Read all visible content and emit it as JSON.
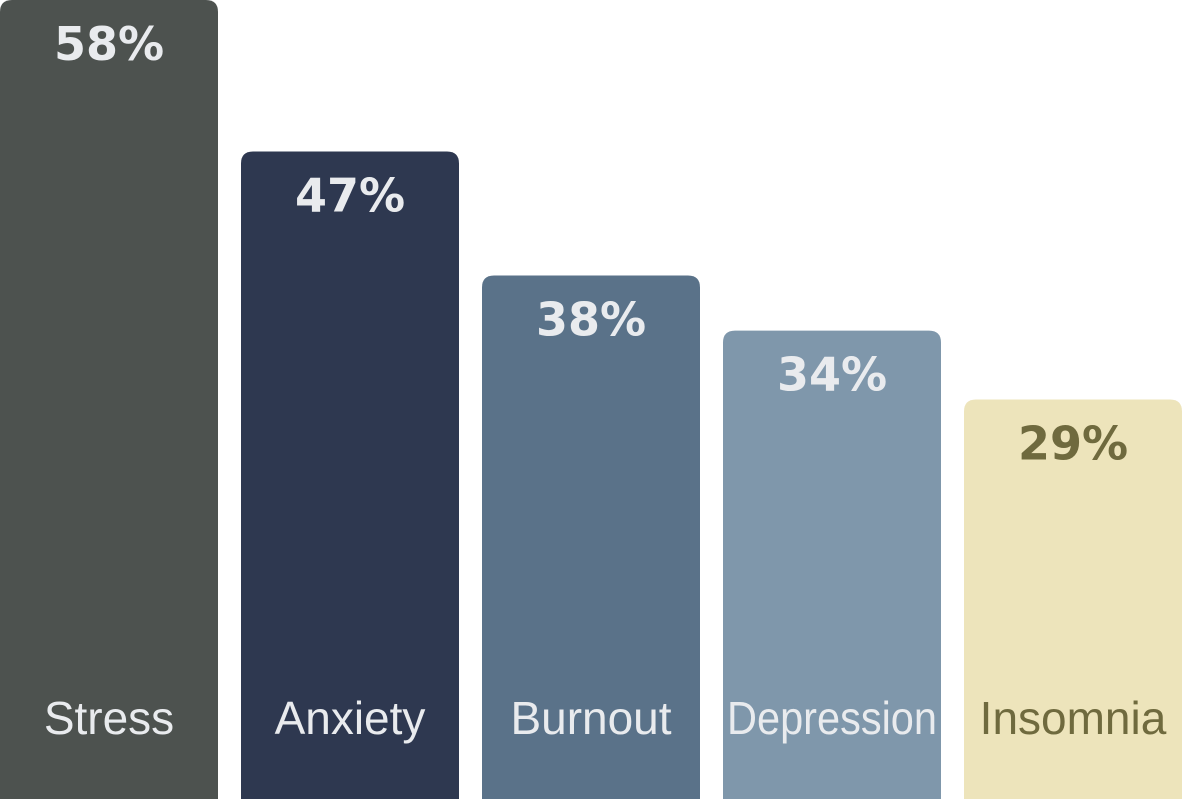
{
  "chart_data": {
    "type": "bar",
    "categories": [
      "Stress",
      "Anxiety",
      "Burnout",
      "Depression",
      "Insomnia"
    ],
    "values": [
      58,
      47,
      38,
      34,
      29
    ],
    "value_labels": [
      "58%",
      "47%",
      "38%",
      "34%",
      "29%"
    ],
    "unit": "%",
    "ylim": [
      0,
      58
    ],
    "grid": false,
    "bar_colors": [
      "#4d524f",
      "#2e3850",
      "#5a7289",
      "#7f97ab",
      "#ede4bb"
    ],
    "label_colors": [
      "#e9ebee",
      "#e9ebee",
      "#e9ebee",
      "#e9ebee",
      "#6f6a3e"
    ]
  }
}
